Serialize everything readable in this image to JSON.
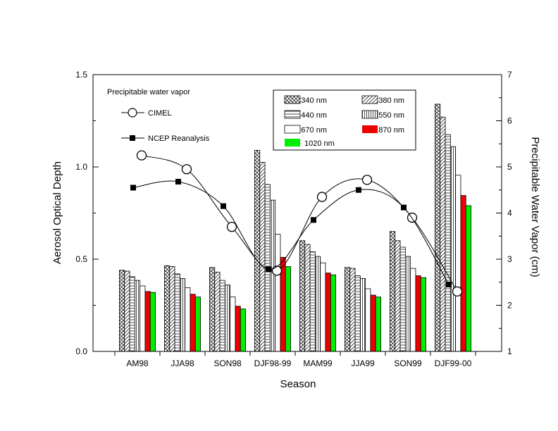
{
  "chart_data": {
    "type": "bar",
    "xlabel": "Season",
    "ylabel": "Aerosol Optical Depth",
    "y2label": "Precipitable Water Vapor (cm)",
    "ylim": [
      0,
      1.5
    ],
    "y2lim": [
      1,
      7
    ],
    "yticks": [
      "0.0",
      "0.5",
      "1.0",
      "1.5"
    ],
    "y2ticks": [
      "1",
      "2",
      "3",
      "4",
      "5",
      "6",
      "7"
    ],
    "categories": [
      "AM98",
      "JJA98",
      "SON98",
      "DJF98-99",
      "MAM99",
      "JJA99",
      "SON99",
      "DJF99-00"
    ],
    "series": [
      {
        "name": "340 nm",
        "pattern": "crosshatch",
        "color": "#ffffff",
        "values": [
          0.44,
          0.465,
          0.455,
          1.09,
          0.6,
          0.455,
          0.65,
          1.34
        ]
      },
      {
        "name": "380 nm",
        "pattern": "diagonal",
        "color": "#ffffff",
        "values": [
          0.435,
          0.46,
          0.43,
          1.025,
          0.58,
          0.45,
          0.6,
          1.27
        ]
      },
      {
        "name": "440 nm",
        "pattern": "horizontal",
        "color": "#ffffff",
        "values": [
          0.405,
          0.42,
          0.385,
          0.905,
          0.54,
          0.41,
          0.565,
          1.175
        ]
      },
      {
        "name": "550 nm",
        "pattern": "vertical",
        "color": "#ffffff",
        "values": [
          0.385,
          0.395,
          0.36,
          0.82,
          0.515,
          0.395,
          0.515,
          1.11
        ]
      },
      {
        "name": "670 nm",
        "pattern": "none",
        "color": "#ffffff",
        "values": [
          0.355,
          0.345,
          0.295,
          0.635,
          0.48,
          0.34,
          0.45,
          0.955
        ]
      },
      {
        "name": "870 nm",
        "pattern": "solid",
        "color": "#ee0000",
        "values": [
          0.325,
          0.31,
          0.245,
          0.51,
          0.425,
          0.305,
          0.41,
          0.845
        ]
      },
      {
        "name": "1020 nm",
        "pattern": "solid",
        "color": "#00ee00",
        "values": [
          0.32,
          0.295,
          0.23,
          0.46,
          0.415,
          0.295,
          0.4,
          0.79
        ]
      }
    ],
    "lines": {
      "title": "Precipitable water vapor",
      "items": [
        {
          "name": "CIMEL",
          "marker": "open-circle",
          "axis": "right",
          "values": [
            5.25,
            4.95,
            3.7,
            2.75,
            4.35,
            4.72,
            3.9,
            2.3
          ]
        },
        {
          "name": "NCEP Reanalysis",
          "marker": "filled-square",
          "axis": "right",
          "values": [
            4.55,
            4.68,
            4.15,
            2.78,
            3.85,
            4.5,
            4.12,
            2.45
          ]
        }
      ]
    }
  }
}
